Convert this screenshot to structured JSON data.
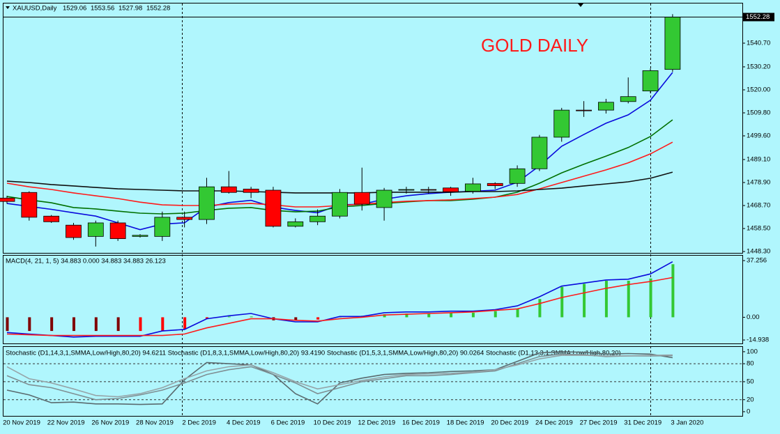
{
  "chart_data": [
    {
      "type": "candlestick",
      "symbol": "XAUUSD,Daily",
      "annotation": "GOLD DAILY",
      "annotation_color": "#ff1a1a",
      "categories": [
        "20 Nov 2019",
        null,
        "22 Nov 2019",
        null,
        "26 Nov 2019",
        null,
        "28 Nov 2019",
        null,
        "2 Dec 2019",
        null,
        "4 Dec 2019",
        null,
        "6 Dec 2019",
        null,
        "10 Dec 2019",
        null,
        "12 Dec 2019",
        null,
        "16 Dec 2019",
        null,
        "18 Dec 2019",
        null,
        "20 Dec 2019",
        null,
        "24 Dec 2019",
        null,
        "27 Dec 2019",
        null,
        "31 Dec 2019",
        null,
        "3 Jan 2020"
      ],
      "open": [
        1472,
        1474.5,
        1464,
        1460,
        1455,
        1461,
        1455,
        1455,
        1463.5,
        1462.5,
        1477,
        1476,
        1475.5,
        1459.5,
        1461.5,
        1464,
        1474.5,
        1467.8,
        1475.5,
        1475.8,
        1476.5,
        1475,
        1478.5,
        1478.5,
        1485,
        1499,
        1511,
        1511,
        1514.8,
        1519.5,
        1529.06
      ],
      "high": [
        1473,
        1475,
        1464.5,
        1461,
        1462,
        1462,
        1456,
        1466,
        1466,
        1481,
        1484,
        1477,
        1477,
        1463,
        1467,
        1476,
        1485.5,
        1476.5,
        1477,
        1477,
        1477,
        1481,
        1479,
        1486.5,
        1500,
        1512,
        1515,
        1516,
        1525.5,
        1529.5,
        1553.56
      ],
      "low": [
        1469.5,
        1462,
        1461,
        1453.5,
        1450.5,
        1453,
        1454.5,
        1453,
        1459,
        1460.5,
        1474,
        1472,
        1459,
        1459,
        1460,
        1463,
        1466.5,
        1462,
        1474,
        1474,
        1473,
        1474,
        1476,
        1477,
        1484,
        1497,
        1508,
        1509.5,
        1514,
        1518.5,
        1527.98
      ],
      "close": [
        1470.5,
        1463.5,
        1461.5,
        1454.5,
        1461,
        1454,
        1455.5,
        1463.5,
        1462.5,
        1477,
        1474.5,
        1474.5,
        1459.5,
        1461.5,
        1464,
        1474.5,
        1469.3,
        1475.5,
        1475.8,
        1475.7,
        1474.8,
        1478.3,
        1477.5,
        1485,
        1499,
        1511,
        1510.8,
        1514.5,
        1517,
        1528.5,
        1552.28
      ],
      "up_color": "#33c833",
      "down_color": "#ff0000",
      "series": [
        {
          "color": "#0a0adc",
          "values": [
            1469.6,
            1468.3,
            1467,
            1465.5,
            1464,
            1461,
            1458,
            1460.5,
            1461,
            1468,
            1470,
            1471,
            1468,
            1466.5,
            1465.5,
            1469,
            1469.3,
            1471.5,
            1473,
            1474,
            1474.6,
            1475,
            1475.5,
            1479,
            1486.3,
            1495,
            1500.2,
            1505.2,
            1508.9,
            1515.4,
            1527.7
          ]
        },
        {
          "color": "#007000",
          "values": [
            1472.7,
            1471.2,
            1469.9,
            1467.8,
            1467.2,
            1466.2,
            1465.3,
            1465,
            1465.3,
            1466.5,
            1467.5,
            1467.8,
            1466.5,
            1465.9,
            1466.2,
            1468.1,
            1468.7,
            1469.6,
            1470.3,
            1470.9,
            1470.9,
            1471.5,
            1472.4,
            1474.6,
            1478.6,
            1483.2,
            1487,
            1490.6,
            1494.4,
            1499.3,
            1506.7
          ]
        },
        {
          "color": "#ff1a1a",
          "values": [
            1478.6,
            1477,
            1475.8,
            1474.3,
            1473,
            1471.8,
            1470.2,
            1469,
            1468.7,
            1468.7,
            1469.3,
            1469.6,
            1469,
            1468.1,
            1468.1,
            1468.7,
            1469.3,
            1470,
            1470.6,
            1470.9,
            1471.2,
            1471.8,
            1472.4,
            1473.6,
            1476.1,
            1478.9,
            1481.7,
            1484.5,
            1487.6,
            1491.6,
            1496.8
          ]
        },
        {
          "color": "#101010",
          "values": [
            1479.5,
            1478.9,
            1478,
            1477.4,
            1476.7,
            1476.1,
            1475.8,
            1475.5,
            1475.2,
            1475.2,
            1475.2,
            1474.9,
            1474.6,
            1474.3,
            1474.3,
            1474.3,
            1474.3,
            1474.6,
            1474.6,
            1474.6,
            1474.6,
            1474.9,
            1474.9,
            1475.2,
            1475.8,
            1476.4,
            1477.4,
            1478.3,
            1479.2,
            1480.8,
            1483.5
          ]
        }
      ],
      "ylim": [
        1447.7,
        1558.3
      ],
      "yticks": [
        {
          "value": 1448.3,
          "label": "1448.30"
        },
        {
          "value": 1458.5,
          "label": "1458.50"
        },
        {
          "value": 1468.7,
          "label": "1468.70"
        },
        {
          "value": 1478.9,
          "label": "1478.90"
        },
        {
          "value": 1489.1,
          "label": "1489.10"
        },
        {
          "value": 1499.6,
          "label": "1499.60"
        },
        {
          "value": 1509.8,
          "label": "1509.80"
        },
        {
          "value": 1520,
          "label": "1520.00"
        },
        {
          "value": 1530.2,
          "label": "1530.20"
        },
        {
          "value": 1540.7,
          "label": "1540.70"
        }
      ]
    },
    {
      "type": "macd",
      "title": "MACD(4, 21, 1, 5) 34.883 0.000 34.883 34.883 26.123",
      "histogram": [
        -9,
        -9,
        -9,
        -9,
        -9,
        -9,
        -9,
        -9,
        -8,
        -1,
        0.5,
        0.5,
        -2,
        -2,
        -1.5,
        0.5,
        1,
        2,
        2.5,
        2.5,
        3,
        3,
        4,
        5.5,
        12,
        20,
        22,
        24,
        24,
        25.5,
        34.883
      ],
      "histogram_colors": [
        "#800000",
        "#800000",
        "#800000",
        "#800000",
        "#800000",
        "#800000",
        "#ff0000",
        "#ff0000",
        "#ff0000",
        "#ff0000",
        "#33c833",
        "#33c833",
        "#800000",
        "#800000",
        "#ff0000",
        "#33c833",
        "#33c833",
        "#33c833",
        "#33c833",
        "#33c833",
        "#33c833",
        "#33c833",
        "#33c833",
        "#33c833",
        "#33c833",
        "#33c833",
        "#33c833",
        "#33c833",
        "#33c833",
        "#33c833",
        "#33c833"
      ],
      "series": [
        {
          "color": "#0a0adc",
          "values": [
            -10,
            -11,
            -12,
            -13,
            -12.5,
            -12.5,
            -12.5,
            -9,
            -8,
            -1,
            1,
            2.5,
            -1,
            -3,
            -3,
            0.5,
            0.5,
            3,
            3.5,
            3.5,
            4,
            4,
            5,
            7.5,
            13.5,
            20.5,
            22.5,
            24.5,
            25,
            28.5,
            36.5
          ]
        },
        {
          "color": "#ff1a1a",
          "values": [
            -11,
            -11.5,
            -12,
            -12,
            -12,
            -12,
            -12,
            -12,
            -11,
            -7,
            -4,
            -1,
            -1,
            -2,
            -2.5,
            -1,
            0,
            1.5,
            2,
            2.5,
            3,
            3.5,
            4.5,
            5.5,
            9,
            13,
            16,
            19,
            21.5,
            23.5,
            26.123
          ]
        }
      ],
      "ylim": [
        -17.2,
        40.5
      ],
      "yticks": [
        37.256,
        {
          "value": 0,
          "label": "0.00"
        },
        -14.938
      ]
    },
    {
      "type": "stochastic",
      "title": "Stochastic (D1,14,3,1,SMMA,Low/High,80,20) 94.6211  Stochastic (D1,8,3,1,SMMA,Low/High,80,20) 93.4190  Stochastic (D1,5,3,1,SMMA,Low/High,80,20) 90.0264  Stochastic (D1,13,3,1,SMMA,Low/High,80,20)",
      "series": [
        {
          "color": "#5a6a6e",
          "values": [
            36,
            28,
            15,
            16,
            13,
            13,
            12,
            13,
            53,
            82,
            80,
            78,
            62,
            30,
            13,
            48,
            56,
            62,
            64,
            65,
            67,
            68,
            70,
            84,
            98,
            100,
            99,
            96,
            97,
            96,
            90.0264
          ]
        },
        {
          "color": "#7f8f93",
          "values": [
            60,
            45,
            40,
            30,
            20,
            22,
            28,
            36,
            48,
            62,
            70,
            75,
            62,
            48,
            30,
            40,
            50,
            55,
            60,
            60,
            62,
            65,
            68,
            80,
            92,
            96,
            95,
            92,
            93,
            93,
            93.419
          ]
        },
        {
          "color": "#96a4a8",
          "values": [
            75,
            55,
            48,
            38,
            27,
            25,
            30,
            40,
            55,
            68,
            75,
            78,
            65,
            50,
            38,
            45,
            52,
            58,
            62,
            63,
            64,
            66,
            70,
            78,
            88,
            94,
            94,
            93,
            93,
            94,
            94.6211
          ]
        }
      ],
      "ylim": [
        -7,
        108
      ],
      "yticks": [
        100,
        80,
        50,
        20,
        0
      ]
    }
  ]
}
